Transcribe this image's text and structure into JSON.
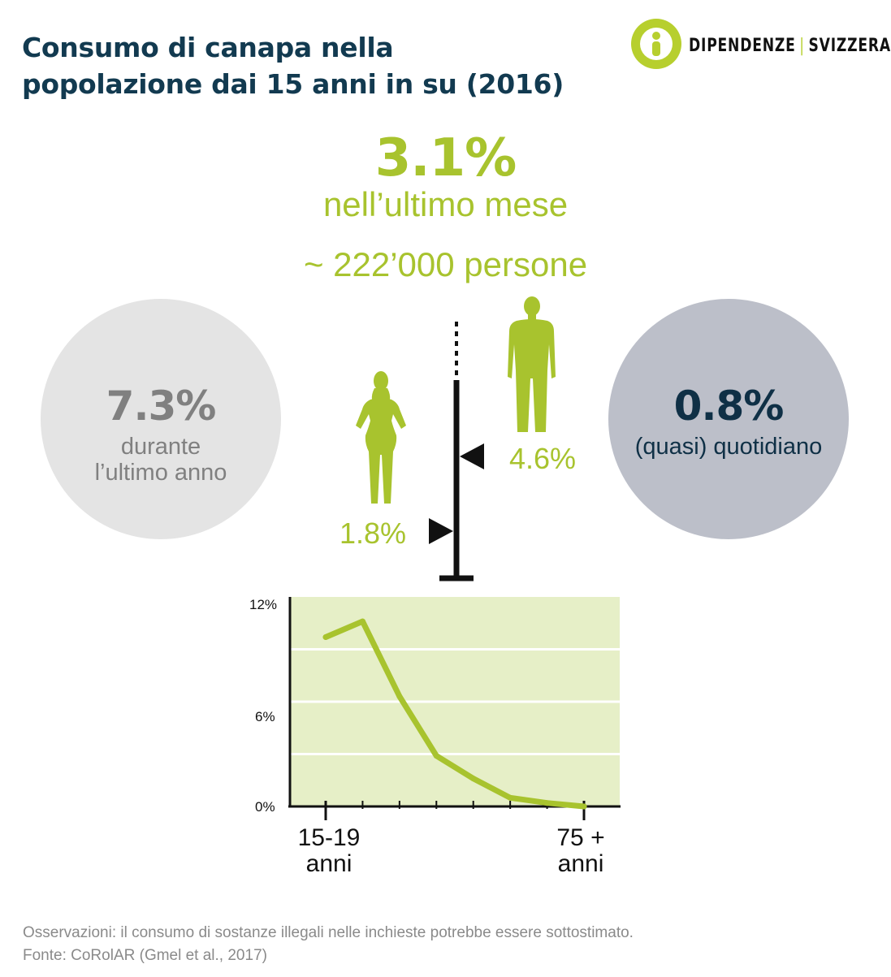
{
  "title": {
    "line1": "Consumo di canapa nella",
    "line2": "popolazione dai 15 anni in su (2016)"
  },
  "brand": {
    "name_left": "DIPENDENZE",
    "name_right": "SVIZZERA",
    "logo_icon": "person-circle-logo-icon",
    "color": "#b7cf2e"
  },
  "headline": {
    "value": "3.1%",
    "label": "nell’ultimo mese",
    "people": "~ 222’000 persone"
  },
  "year_stat": {
    "value": "7.3%",
    "label_line1": "durante",
    "label_line2": "l’ultimo anno"
  },
  "daily_stat": {
    "value": "0.8%",
    "label": "(quasi) quotidiano"
  },
  "gender": {
    "women_value": "1.8%",
    "men_value": "4.6%",
    "women_icon": "woman-silhouette-icon",
    "men_icon": "man-silhouette-icon",
    "flag_icon": "flag-marker-icon"
  },
  "colors": {
    "accent": "#a8c32e",
    "title": "#123a50",
    "chart_bg": "#e6efc7"
  },
  "chart_data": {
    "type": "line",
    "x_start_label": "15-19",
    "x_start_unit": "anni",
    "x_end_label": "75 +",
    "x_end_unit": "anni",
    "yticks": [
      "0%",
      "6%",
      "12%"
    ],
    "ylim": [
      0,
      12
    ],
    "grid": true,
    "series": [
      {
        "values": [
          9.7,
          10.6,
          6.3,
          2.9,
          1.6,
          0.5,
          0.2,
          0.0
        ]
      }
    ]
  },
  "footnote": {
    "note": "Osservazioni: il consumo di sostanze illegali nelle inchieste potrebbe essere sottostimato.",
    "source": "Fonte: CoRolAR (Gmel et al., 2017)"
  }
}
